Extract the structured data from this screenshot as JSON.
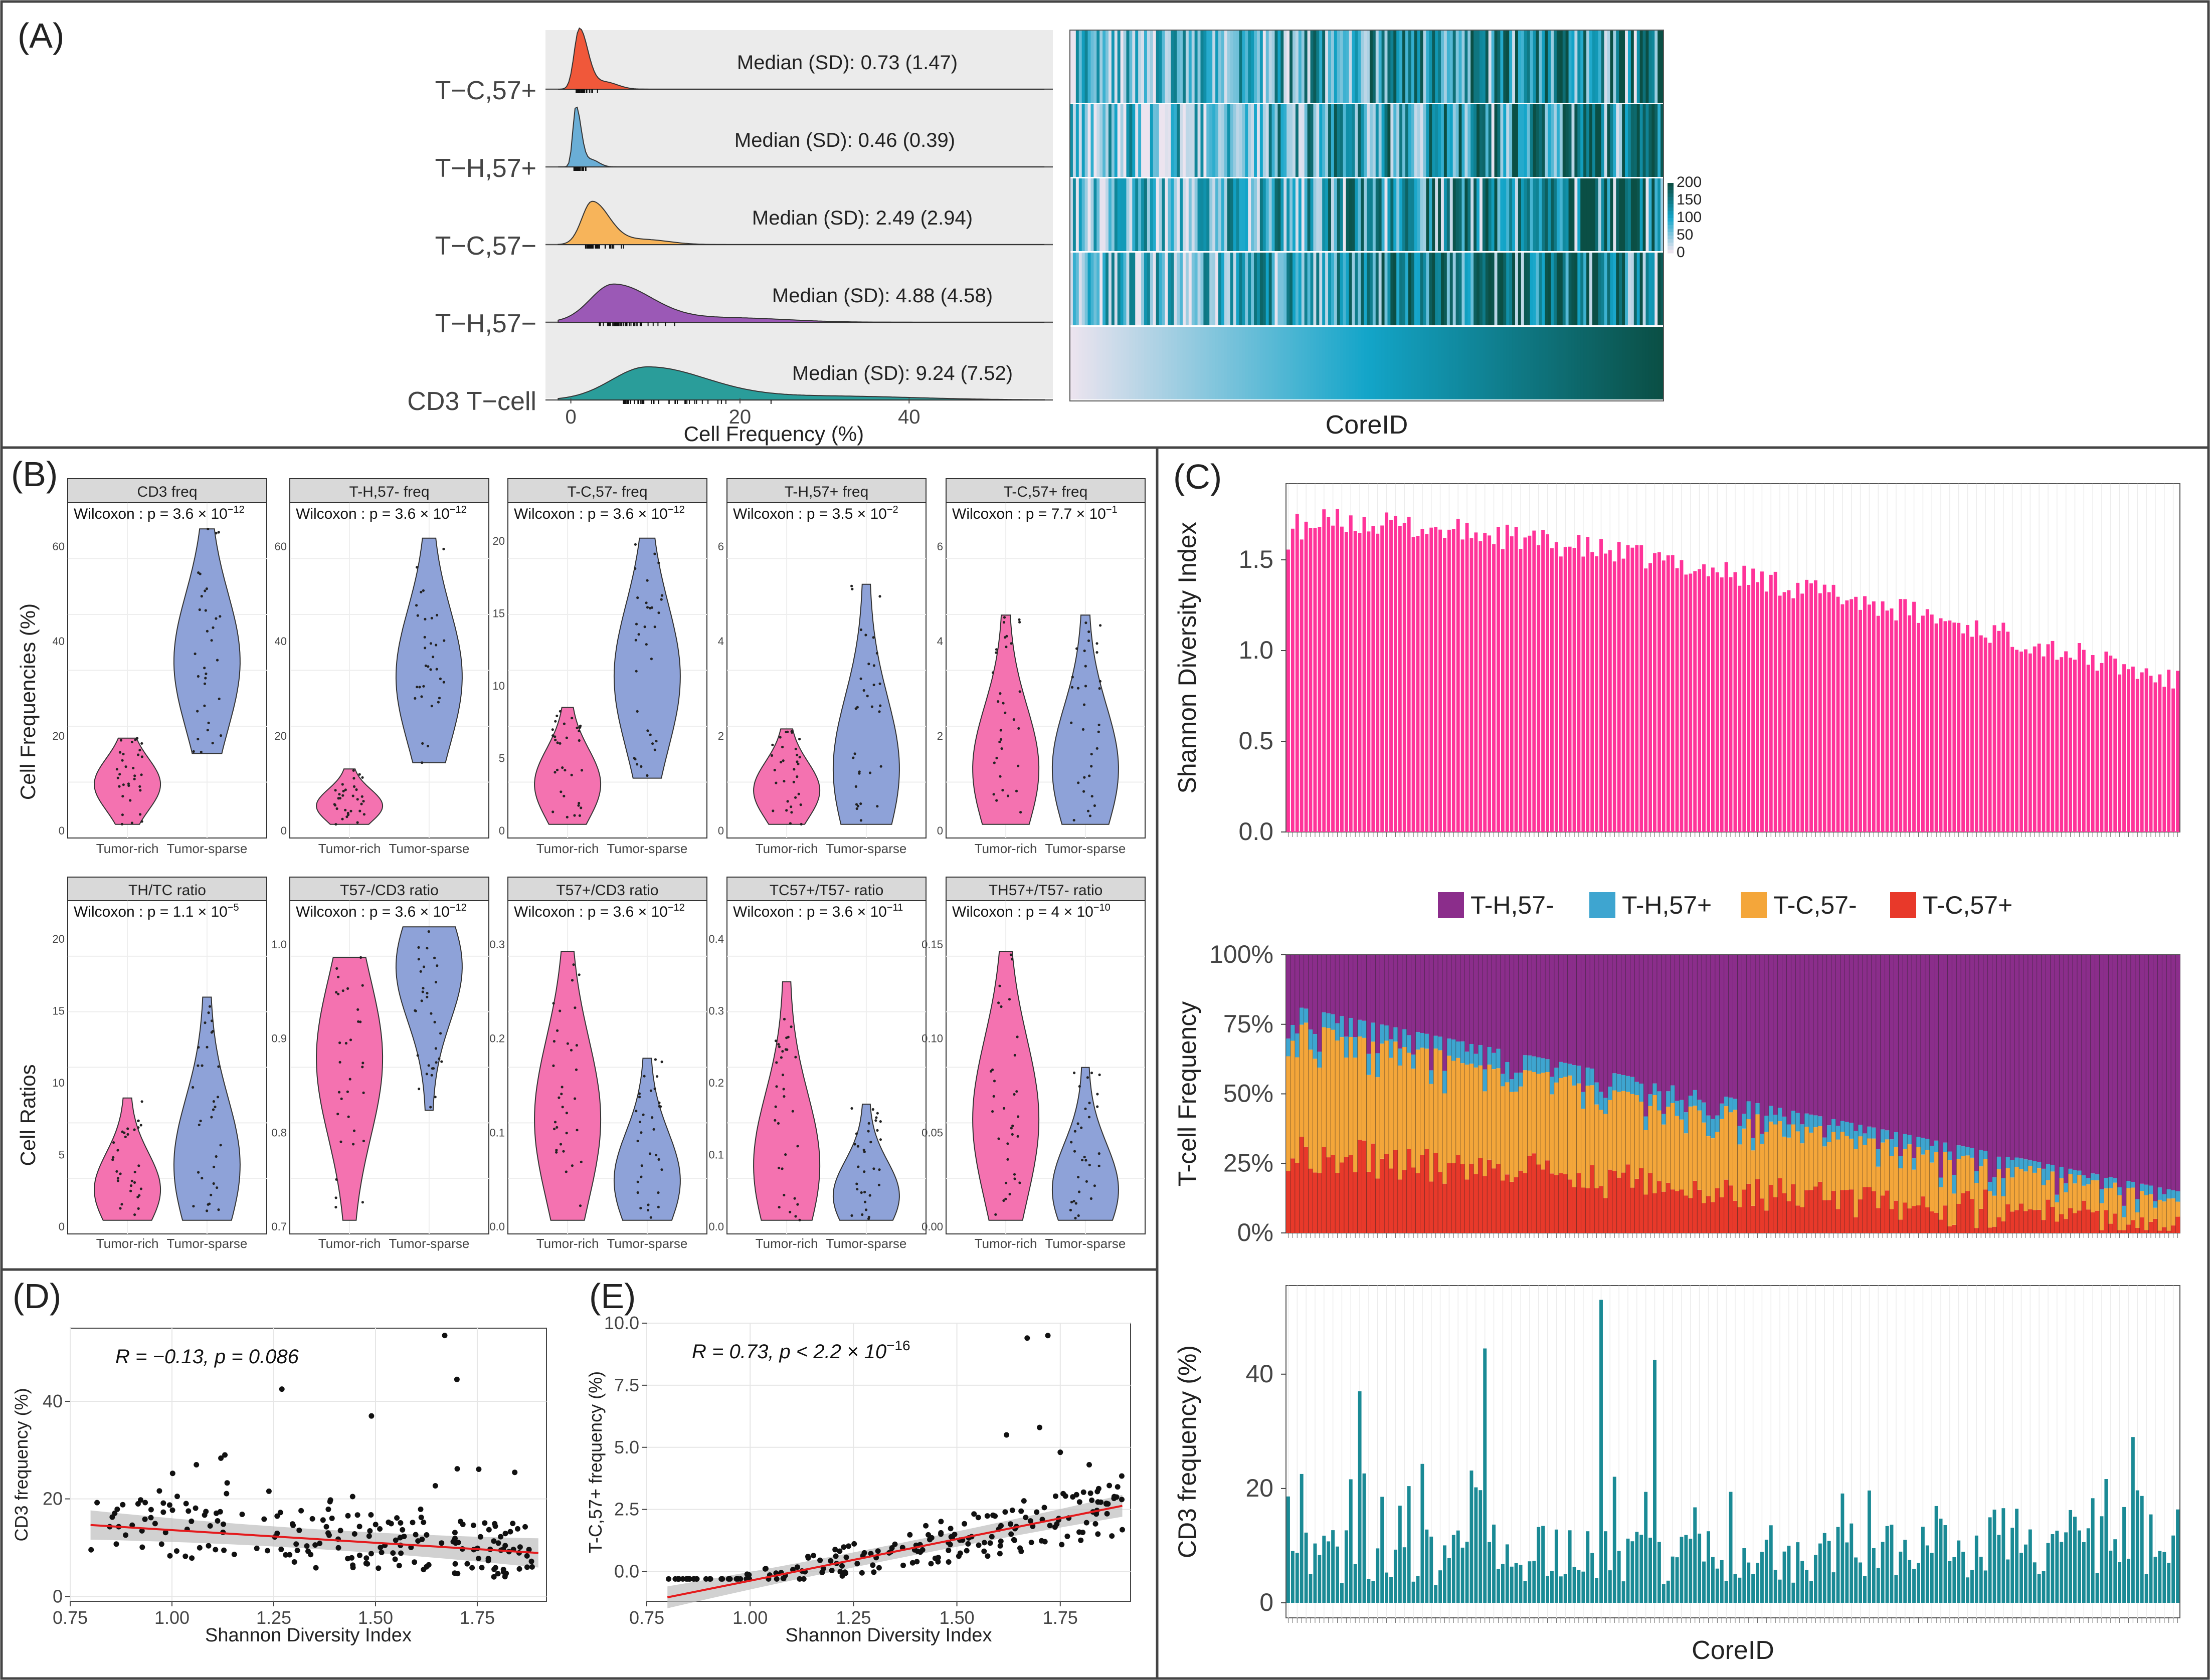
{
  "colors": {
    "tc57p": "#f0583a",
    "th57p": "#6aaed6",
    "tc57n": "#f7b45a",
    "th57n": "#9b59b6",
    "cd3": "#2a9d9a",
    "pink": "#f472b0",
    "blue": "#8ea2d8",
    "bar_pink": "#ff3399",
    "bar_teal": "#1a8a95",
    "stack_purple": "#8b2d8b",
    "stack_blue": "#3ea5d0",
    "stack_orange": "#f4a63a",
    "stack_red": "#e8392a",
    "heat_low": "#ece4ef",
    "heat_mid": "#13a5c9",
    "heat_high": "#0b4f45"
  },
  "panel_a": {
    "label": "(A)",
    "xlabel": "Cell Frequency (%)",
    "x_ticks": [
      "0",
      "20",
      "40"
    ],
    "heatmap_xlabel": "CoreID",
    "legend_ticks": [
      "200",
      "150",
      "100",
      "50",
      "0"
    ],
    "rows": [
      {
        "name": "T−C,57+",
        "median": "Median (SD): 0.73 (1.47)"
      },
      {
        "name": "T−H,57+",
        "median": "Median (SD): 0.46 (0.39)"
      },
      {
        "name": "T−C,57−",
        "median": "Median (SD): 2.49 (2.94)"
      },
      {
        "name": "T−H,57−",
        "median": "Median (SD): 4.88 (4.58)"
      },
      {
        "name": "CD3 T−cell",
        "median": "Median (SD): 9.24 (7.52)"
      }
    ]
  },
  "panel_b": {
    "label": "(B)",
    "ylabel_top": "Cell Frequencies (%)",
    "ylabel_bottom": "Cell Ratios",
    "groups": [
      "Tumor-rich",
      "Tumor-sparse"
    ],
    "wilcoxon_prefix": "Wilcoxon : p = ",
    "facets": [
      {
        "title": "CD3 freq",
        "p_mant": "3.6",
        "p_exp": "−12",
        "ticks": [
          "0",
          "20",
          "40",
          "60"
        ]
      },
      {
        "title": "T-H,57- freq",
        "p_mant": "3.6",
        "p_exp": "−12",
        "ticks": [
          "0",
          "20",
          "40",
          "60"
        ]
      },
      {
        "title": "T-C,57- freq",
        "p_mant": "3.6",
        "p_exp": "−12",
        "ticks": [
          "0",
          "5",
          "10",
          "15",
          "20"
        ]
      },
      {
        "title": "T-H,57+ freq",
        "p_mant": "3.5",
        "p_exp": "−2",
        "ticks": [
          "0",
          "2",
          "4",
          "6"
        ]
      },
      {
        "title": "T-C,57+ freq",
        "p_mant": "7.7",
        "p_exp": "−1",
        "ticks": [
          "0",
          "2",
          "4",
          "6"
        ]
      },
      {
        "title": "TH/TC ratio",
        "p_mant": "1.1",
        "p_exp": "−5",
        "ticks": [
          "0",
          "5",
          "10",
          "15",
          "20"
        ]
      },
      {
        "title": "T57-/CD3 ratio",
        "p_mant": "3.6",
        "p_exp": "−12",
        "ticks": [
          "0.7",
          "0.8",
          "0.9",
          "1.0"
        ]
      },
      {
        "title": "T57+/CD3 ratio",
        "p_mant": "3.6",
        "p_exp": "−12",
        "ticks": [
          "0.0",
          "0.1",
          "0.2",
          "0.3"
        ]
      },
      {
        "title": "TC57+/T57- ratio",
        "p_mant": "3.6",
        "p_exp": "−11",
        "ticks": [
          "0.0",
          "0.1",
          "0.2",
          "0.3",
          "0.4"
        ]
      },
      {
        "title": "TH57+/T57- ratio",
        "p_mant": "4",
        "p_exp": "−10",
        "ticks": [
          "0.00",
          "0.05",
          "0.10",
          "0.15"
        ]
      }
    ]
  },
  "panel_c": {
    "label": "(C)",
    "top_ylabel": "Shannon Diversity Index",
    "top_ticks": [
      "0.0",
      "0.5",
      "1.0",
      "1.5"
    ],
    "legend": [
      "T-H,57-",
      "T-H,57+",
      "T-C,57-",
      "T-C,57+"
    ],
    "mid_ylabel": "T-cell Frequency",
    "mid_ticks": [
      "0%",
      "25%",
      "50%",
      "75%",
      "100%"
    ],
    "bot_ylabel": "CD3 frequency (%)",
    "bot_ticks": [
      "0",
      "20",
      "40"
    ],
    "xlabel": "CoreID"
  },
  "panel_d": {
    "label": "(D)",
    "stat": "R = −0.13, p = 0.086",
    "xlabel": "Shannon Diversity Index",
    "ylabel": "CD3 frequency (%)",
    "x_ticks": [
      "0.75",
      "1.00",
      "1.25",
      "1.50",
      "1.75"
    ],
    "y_ticks": [
      "0",
      "20",
      "40"
    ]
  },
  "panel_e": {
    "label": "(E)",
    "stat_prefix": "R = 0.73, p < 2.2 × 10",
    "stat_exp": "−16",
    "xlabel": "Shannon Diversity Index",
    "ylabel": "T-C,57+ frequency (%)",
    "x_ticks": [
      "0.75",
      "1.00",
      "1.25",
      "1.50",
      "1.75"
    ],
    "y_ticks": [
      "0.0",
      "2.5",
      "5.0",
      "7.5",
      "10.0"
    ]
  },
  "chart_data": [
    {
      "type": "area",
      "panel": "A-ridgeline",
      "title": "",
      "xlabel": "Cell Frequency (%)",
      "xlim": [
        -3,
        57
      ],
      "series": [
        {
          "name": "T−C,57+",
          "median": 0.73,
          "sd": 1.47
        },
        {
          "name": "T−H,57+",
          "median": 0.46,
          "sd": 0.39
        },
        {
          "name": "T−C,57−",
          "median": 2.49,
          "sd": 2.94
        },
        {
          "name": "T−H,57−",
          "median": 4.88,
          "sd": 4.58
        },
        {
          "name": "CD3 T−cell",
          "median": 9.24,
          "sd": 7.52
        }
      ]
    },
    {
      "type": "heatmap",
      "panel": "A-heatmap",
      "xlabel": "CoreID",
      "rows": 5,
      "columns": 200,
      "value_range": [
        0,
        200
      ]
    },
    {
      "type": "bar",
      "panel": "C-top",
      "ylabel": "Shannon Diversity Index",
      "ylim": [
        0,
        1.9
      ],
      "n_cores": 200,
      "value_start": 1.7,
      "value_end": 0.8
    },
    {
      "type": "bar",
      "panel": "C-middle-stacked",
      "ylabel": "T-cell Frequency",
      "ylim": [
        0,
        1
      ],
      "series": [
        {
          "name": "T-C,57+",
          "start": 0.3,
          "end": 0.03
        },
        {
          "name": "T-C,57-",
          "start": 0.45,
          "end": 0.08
        },
        {
          "name": "T-H,57+",
          "start": 0.07,
          "end": 0.04
        },
        {
          "name": "T-H,57-",
          "start": 0.18,
          "end": 0.85
        }
      ]
    },
    {
      "type": "bar",
      "panel": "C-bottom",
      "ylabel": "CD3 frequency (%)",
      "ylim": [
        0,
        55
      ],
      "peaks": [
        {
          "core": 16,
          "value": 37
        },
        {
          "core": 44,
          "value": 44.5
        },
        {
          "core": 70,
          "value": 53
        },
        {
          "core": 82,
          "value": 42.5
        },
        {
          "core": 189,
          "value": 29
        }
      ]
    },
    {
      "type": "scatter",
      "panel": "D",
      "xlabel": "Shannon Diversity Index",
      "ylabel": "CD3 frequency (%)",
      "xlim": [
        0.75,
        1.92
      ],
      "ylim": [
        -1,
        55
      ],
      "fit": {
        "intercept": 18.8,
        "slope": -5.2
      },
      "stat": "R = -0.13, p = 0.086"
    },
    {
      "type": "scatter",
      "panel": "E",
      "xlabel": "Shannon Diversity Index",
      "ylabel": "T-C,57+ frequency (%)",
      "xlim": [
        0.75,
        1.92
      ],
      "ylim": [
        -1.2,
        10
      ],
      "fit": {
        "intercept": -3.72,
        "slope": 3.35
      },
      "stat": "R = 0.73, p < 2.2e-16"
    }
  ]
}
